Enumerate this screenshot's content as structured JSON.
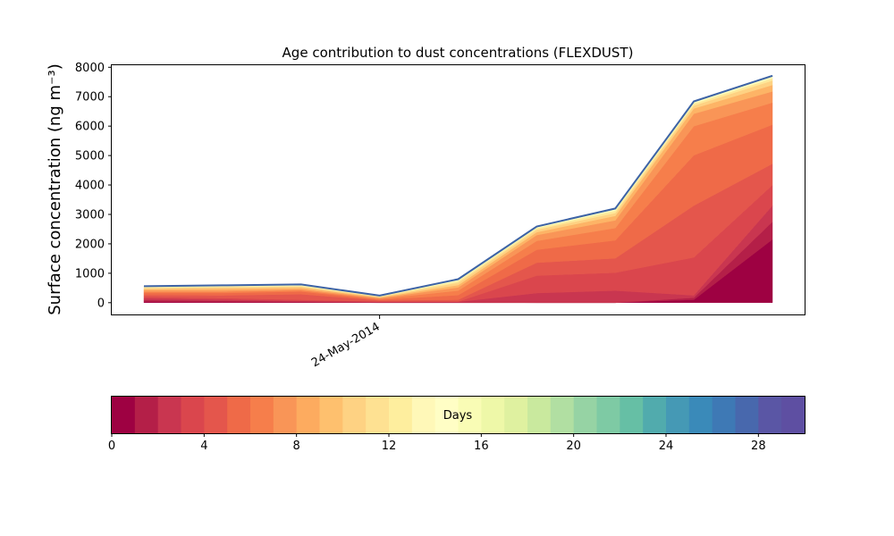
{
  "chart_data": [
    {
      "type": "area",
      "title": "Age contribution to dust concentrations (FLEXDUST)",
      "ylabel": "Surface concentration (ng m⁻³)",
      "xlabel": "",
      "x": [
        "2014-05-21",
        "2014-05-22",
        "2014-05-23",
        "2014-05-24",
        "2014-05-25",
        "2014-05-26",
        "2014-05-27",
        "2014-05-28",
        "2014-05-29"
      ],
      "x_tick_labels": [
        {
          "x": "2014-05-24",
          "label": "24-May-2014"
        }
      ],
      "ylim": [
        -400,
        8100
      ],
      "yticks": [
        0,
        1000,
        2000,
        3000,
        4000,
        5000,
        6000,
        7000,
        8000
      ],
      "grid": false,
      "stack_boundaries": [
        {
          "name": "",
          "values": [
            30,
            20,
            10,
            0,
            0,
            0,
            0,
            100,
            2150
          ]
        },
        {
          "name": "",
          "values": [
            90,
            60,
            30,
            10,
            10,
            0,
            0,
            170,
            2750
          ]
        },
        {
          "name": "",
          "values": [
            150,
            110,
            60,
            30,
            30,
            330,
            410,
            250,
            3300
          ]
        },
        {
          "name": "",
          "values": [
            200,
            160,
            100,
            40,
            40,
            920,
            1020,
            1540,
            4000
          ]
        },
        {
          "name": "",
          "values": [
            260,
            250,
            290,
            80,
            100,
            1360,
            1510,
            3300,
            4720
          ]
        },
        {
          "name": "",
          "values": [
            330,
            330,
            380,
            100,
            260,
            1800,
            2120,
            5010,
            6050
          ]
        },
        {
          "name": "",
          "values": [
            370,
            370,
            420,
            130,
            410,
            2100,
            2540,
            6000,
            6800
          ]
        },
        {
          "name": "",
          "values": [
            420,
            420,
            460,
            160,
            520,
            2300,
            2800,
            6420,
            7180
          ]
        },
        {
          "name": "",
          "values": [
            460,
            480,
            510,
            180,
            600,
            2400,
            2950,
            6600,
            7400
          ]
        },
        {
          "name": "",
          "values": [
            500,
            530,
            550,
            200,
            680,
            2480,
            3050,
            6700,
            7550
          ]
        },
        {
          "name": "",
          "values": [
            530,
            560,
            580,
            220,
            740,
            2540,
            3130,
            6770,
            7630
          ]
        },
        {
          "name": "",
          "values": [
            550,
            580,
            610,
            240,
            790,
            2580,
            3180,
            6830,
            7690
          ]
        },
        {
          "name": "",
          "values": [
            560,
            590,
            620,
            240,
            800,
            2590,
            3200,
            6840,
            7710
          ]
        }
      ],
      "series_colors": [
        "#9e0142",
        "#b41f48",
        "#c93650",
        "#da464d",
        "#e4564c",
        "#ef6a48",
        "#f67e4b",
        "#f99557",
        "#fdb466",
        "#fed283",
        "#fee99a",
        "#fdfec0",
        "#3d63a6"
      ],
      "total_line_color": "#3d63a6"
    },
    {
      "type": "colorbar",
      "label": "Days",
      "range": [
        0,
        30
      ],
      "ticks": [
        0,
        4,
        8,
        12,
        16,
        20,
        24,
        28
      ],
      "colors": [
        "#9e0142",
        "#b41f48",
        "#c93650",
        "#da464d",
        "#e4564c",
        "#ef6a48",
        "#f67e4b",
        "#f99557",
        "#fdab5f",
        "#fec06e",
        "#fed283",
        "#fee192",
        "#feee9e",
        "#fff8b8",
        "#fffec5",
        "#f9fcb5",
        "#eef8a8",
        "#dff1a0",
        "#c9e99e",
        "#b1dfa2",
        "#96d3a4",
        "#7ecaa4",
        "#66bfa5",
        "#51abad",
        "#4599b5",
        "#3a8ab9",
        "#3e79b5",
        "#4868ad",
        "#5a56a5",
        "#5e4fa2"
      ]
    }
  ]
}
